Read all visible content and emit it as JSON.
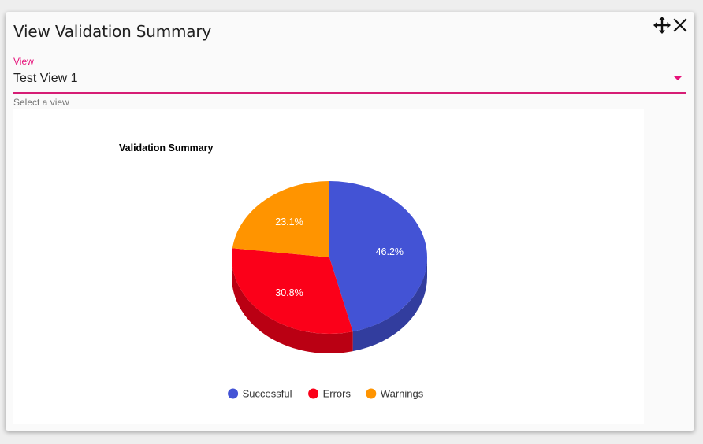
{
  "dialog": {
    "title": "View Validation Summary",
    "move_icon": "move-arrows-icon",
    "close_icon": "close-icon"
  },
  "view_select": {
    "label": "View",
    "value": "Test View 1",
    "hint": "Select a view",
    "accent_color": "#e6127a"
  },
  "chart_data": {
    "type": "pie",
    "title": "Validation Summary",
    "style": "3d",
    "categories": [
      "Successful",
      "Errors",
      "Warnings"
    ],
    "values": [
      46.2,
      30.8,
      23.1
    ],
    "labels": [
      "46.2%",
      "30.8%",
      "23.1%"
    ],
    "colors": [
      "#4353d5",
      "#fb0019",
      "#ff9400"
    ],
    "legend_position": "bottom"
  }
}
